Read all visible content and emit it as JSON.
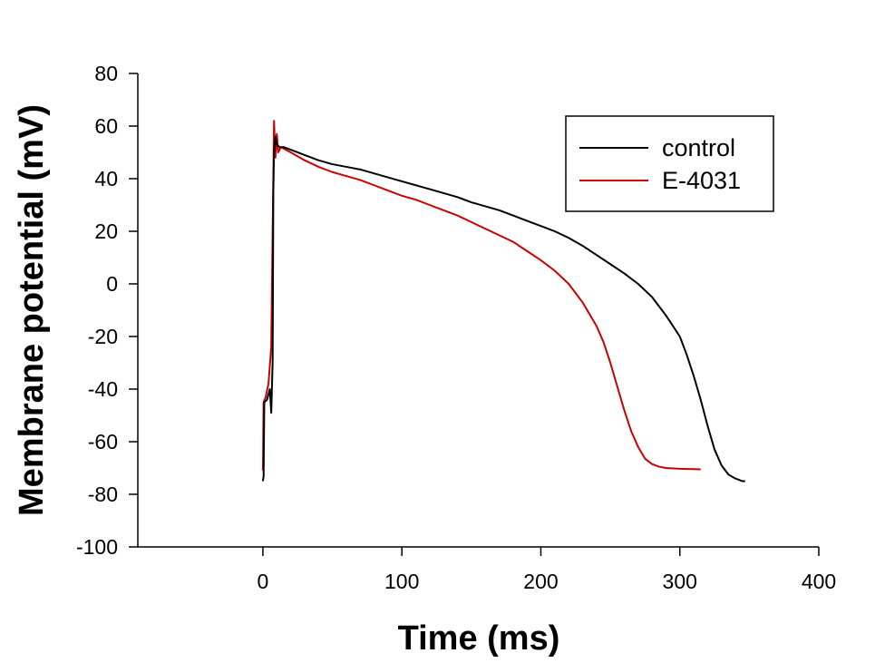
{
  "chart_data": {
    "type": "line",
    "xlabel": "Time (ms)",
    "ylabel": "Membrane potential (mV)",
    "xlim": [
      -90,
      400
    ],
    "ylim": [
      -100,
      80
    ],
    "x_ticks": [
      0,
      100,
      200,
      300,
      400
    ],
    "y_ticks": [
      -100,
      -80,
      -60,
      -40,
      -20,
      0,
      20,
      40,
      60,
      80
    ],
    "grid": false,
    "legend_position": "top-right",
    "series": [
      {
        "name": "control",
        "color": "#000000",
        "points": [
          [
            0,
            -75
          ],
          [
            0.5,
            -73
          ],
          [
            1,
            -45
          ],
          [
            3,
            -44
          ],
          [
            5,
            -40
          ],
          [
            6,
            -49
          ],
          [
            7,
            -30
          ],
          [
            7.5,
            35
          ],
          [
            8,
            50
          ],
          [
            9,
            56
          ],
          [
            10,
            53
          ],
          [
            12,
            52
          ],
          [
            15,
            52
          ],
          [
            20,
            51
          ],
          [
            30,
            49
          ],
          [
            40,
            47
          ],
          [
            50,
            45.5
          ],
          [
            60,
            44.5
          ],
          [
            70,
            43.5
          ],
          [
            80,
            42
          ],
          [
            90,
            40.5
          ],
          [
            100,
            39
          ],
          [
            110,
            37.5
          ],
          [
            120,
            36
          ],
          [
            130,
            34.5
          ],
          [
            140,
            33
          ],
          [
            150,
            31
          ],
          [
            160,
            29.5
          ],
          [
            170,
            28
          ],
          [
            180,
            26
          ],
          [
            190,
            24
          ],
          [
            200,
            22
          ],
          [
            210,
            20
          ],
          [
            220,
            17.5
          ],
          [
            230,
            14.5
          ],
          [
            240,
            11
          ],
          [
            250,
            7.5
          ],
          [
            260,
            4
          ],
          [
            270,
            0
          ],
          [
            280,
            -5
          ],
          [
            290,
            -12
          ],
          [
            300,
            -20
          ],
          [
            305,
            -27
          ],
          [
            310,
            -35
          ],
          [
            315,
            -44
          ],
          [
            320,
            -54
          ],
          [
            325,
            -63
          ],
          [
            330,
            -69
          ],
          [
            335,
            -72.5
          ],
          [
            340,
            -74
          ],
          [
            345,
            -75
          ],
          [
            347,
            -75
          ]
        ]
      },
      {
        "name": "E-4031",
        "color": "#cc0000",
        "points": [
          [
            0,
            -71
          ],
          [
            0.5,
            -45
          ],
          [
            2,
            -43
          ],
          [
            4,
            -38
          ],
          [
            6,
            -24
          ],
          [
            7,
            20
          ],
          [
            8,
            62
          ],
          [
            9,
            48
          ],
          [
            10,
            57
          ],
          [
            11,
            50
          ],
          [
            13,
            52
          ],
          [
            20,
            50
          ],
          [
            30,
            47
          ],
          [
            40,
            44.5
          ],
          [
            50,
            42.5
          ],
          [
            60,
            41
          ],
          [
            70,
            39.5
          ],
          [
            80,
            37.5
          ],
          [
            90,
            35.5
          ],
          [
            100,
            33.5
          ],
          [
            110,
            32
          ],
          [
            120,
            30
          ],
          [
            130,
            28
          ],
          [
            140,
            26
          ],
          [
            150,
            23.5
          ],
          [
            160,
            21
          ],
          [
            170,
            18.5
          ],
          [
            180,
            16
          ],
          [
            190,
            12.5
          ],
          [
            200,
            9
          ],
          [
            210,
            5
          ],
          [
            220,
            0
          ],
          [
            230,
            -7
          ],
          [
            240,
            -16
          ],
          [
            245,
            -22
          ],
          [
            250,
            -30
          ],
          [
            255,
            -39
          ],
          [
            260,
            -48
          ],
          [
            265,
            -56
          ],
          [
            270,
            -62
          ],
          [
            275,
            -66.5
          ],
          [
            280,
            -68.5
          ],
          [
            285,
            -69.5
          ],
          [
            290,
            -70
          ],
          [
            300,
            -70.3
          ],
          [
            315,
            -70.5
          ]
        ]
      }
    ]
  }
}
